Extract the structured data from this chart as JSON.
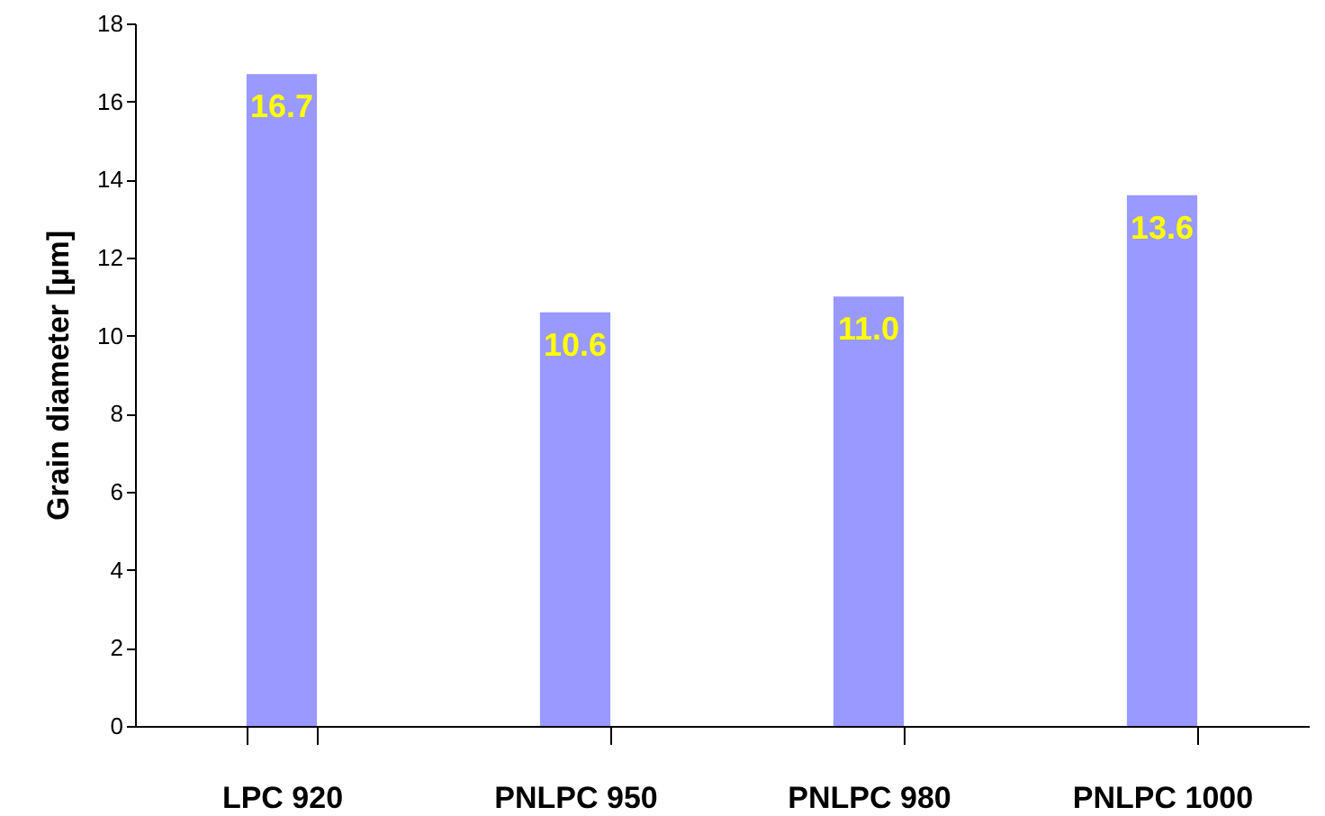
{
  "chart_data": {
    "type": "bar",
    "ylabel": "Grain diameter [µm]",
    "categories": [
      "LPC 920",
      "PNLPC 950",
      "PNLPC 980",
      "PNLPC 1000"
    ],
    "values": [
      16.7,
      10.6,
      11.0,
      13.6
    ],
    "value_labels": [
      "16.7",
      "10.6",
      "11.0",
      "13.6"
    ],
    "color": "#9999ff",
    "ylim": [
      0,
      18
    ],
    "yticks": [
      0,
      2,
      4,
      6,
      8,
      10,
      12,
      14,
      16,
      18
    ],
    "grid": false
  }
}
